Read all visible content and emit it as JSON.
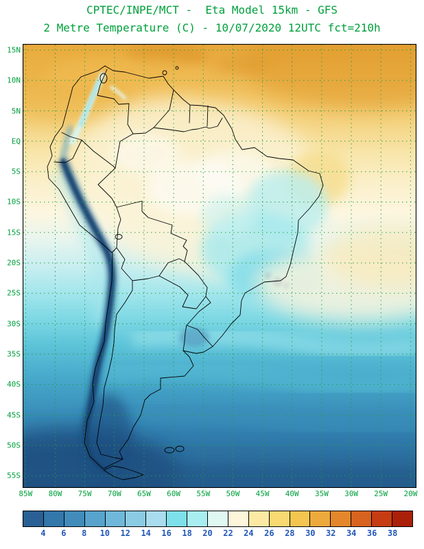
{
  "title": {
    "line1": "CPTEC/INPE/MCT -  Eta Model 15km - GFS",
    "line2": "2 Metre Temperature (C) - 10/07/2020 12UTC fct=210h"
  },
  "colors": {
    "title_text": "#00a03c",
    "axis_text": "#00a03c",
    "grid_lines": "#1fa040",
    "frame": "#000000",
    "coastline": "#000000",
    "colorbar_tick_text": "#2257b8",
    "background": "#ffffff"
  },
  "map": {
    "lat_labels": [
      "15N",
      "10N",
      "5N",
      "EQ",
      "5S",
      "10S",
      "15S",
      "20S",
      "25S",
      "30S",
      "35S",
      "40S",
      "45S",
      "50S",
      "55S"
    ],
    "lon_labels": [
      "85W",
      "80W",
      "75W",
      "70W",
      "65W",
      "60W",
      "55W",
      "50W",
      "45W",
      "40W",
      "35W",
      "30W",
      "25W",
      "20W"
    ]
  },
  "colorbar": {
    "tick_values": [
      "4",
      "6",
      "8",
      "10",
      "12",
      "14",
      "16",
      "18",
      "20",
      "22",
      "24",
      "26",
      "28",
      "30",
      "32",
      "34",
      "36",
      "38"
    ],
    "segment_colors": [
      "#2a6095",
      "#3377ab",
      "#428cbc",
      "#57a3cc",
      "#70b8d9",
      "#8ccbe4",
      "#a8dcee",
      "#7ee0ea",
      "#a8eef0",
      "#dff8f2",
      "#fdf6da",
      "#fbe9a4",
      "#f9da72",
      "#f4c64f",
      "#edaa3c",
      "#e4872c",
      "#d8621f",
      "#c63d13",
      "#aa2009"
    ]
  },
  "chart_data": {
    "type": "heatmap",
    "title": "2 Metre Temperature (C)",
    "subtitle": "CPTEC/INPE/MCT -  Eta Model 15km - GFS",
    "valid": "10/07/2020 12UTC fct=210h",
    "units": "C",
    "scale_values": [
      4,
      6,
      8,
      10,
      12,
      14,
      16,
      18,
      20,
      22,
      24,
      26,
      28,
      30,
      32,
      34,
      36,
      38
    ],
    "lat_ticks": [
      "15N",
      "10N",
      "5N",
      "EQ",
      "5S",
      "10S",
      "15S",
      "20S",
      "25S",
      "30S",
      "35S",
      "40S",
      "45S",
      "50S",
      "55S"
    ],
    "lon_ticks": [
      "85W",
      "80W",
      "75W",
      "70W",
      "65W",
      "60W",
      "55W",
      "50W",
      "45W",
      "40W",
      "35W",
      "30W",
      "25W",
      "20W"
    ],
    "legend_position": "bottom",
    "grid": "dashed"
  }
}
